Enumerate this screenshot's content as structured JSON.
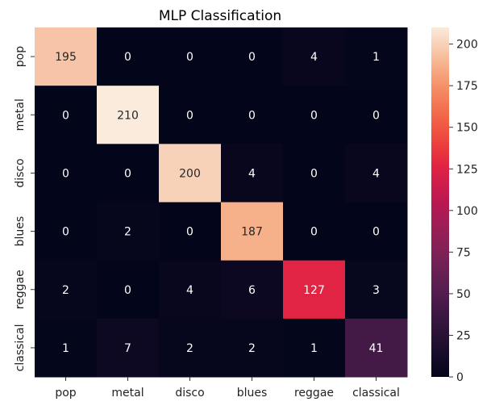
{
  "chart_data": {
    "type": "heatmap",
    "title": "MLP Classification",
    "xlabel": "",
    "ylabel": "",
    "x_categories": [
      "pop",
      "metal",
      "disco",
      "blues",
      "reggae",
      "classical"
    ],
    "y_categories": [
      "pop",
      "metal",
      "disco",
      "blues",
      "reggae",
      "classical"
    ],
    "values": [
      [
        195,
        0,
        0,
        0,
        4,
        1
      ],
      [
        0,
        210,
        0,
        0,
        0,
        0
      ],
      [
        0,
        0,
        200,
        4,
        0,
        4
      ],
      [
        0,
        2,
        0,
        187,
        0,
        0
      ],
      [
        2,
        0,
        4,
        6,
        127,
        3
      ],
      [
        1,
        7,
        2,
        2,
        1,
        41
      ]
    ],
    "colorbar": {
      "vmin": 0,
      "vmax": 210,
      "ticks": [
        0,
        25,
        50,
        75,
        100,
        125,
        150,
        175,
        200
      ],
      "colormap": "rocket"
    },
    "grid": false
  }
}
